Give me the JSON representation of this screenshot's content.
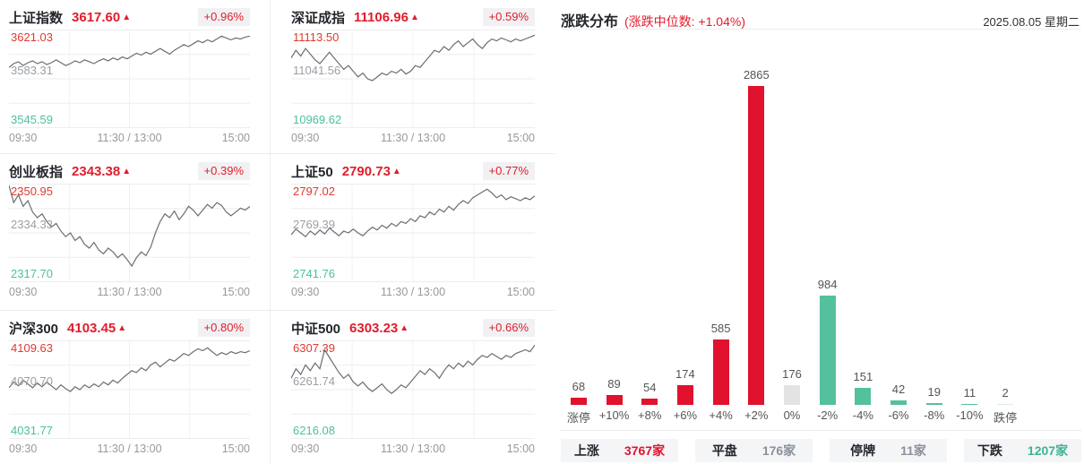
{
  "colors": {
    "up_red": "#e0122d",
    "up_red_text": "#e01d2c",
    "flat_gray_bar": "#e3e3e4",
    "down_teal_bar": "#55c09d",
    "down_teal_light_bar": "#d8efe7",
    "down_teal_text": "#3fb393",
    "neutral_gray_text": "#8b909a",
    "axis_gray": "#999999",
    "sparkline_gray": "#6b6e73"
  },
  "chart_data": [
    {
      "type": "bar",
      "title": "涨跌分布",
      "median_note": "(涨跌中位数: +1.04%)",
      "date": "2025.08.05 星期二",
      "categories": [
        "涨停",
        "+10%",
        "+8%",
        "+6%",
        "+4%",
        "+2%",
        "0%",
        "-2%",
        "-4%",
        "-6%",
        "-8%",
        "-10%",
        "跌停"
      ],
      "values": [
        68,
        89,
        54,
        174,
        585,
        2865,
        176,
        984,
        151,
        42,
        19,
        11,
        2
      ],
      "bar_colors": [
        "#e0122d",
        "#e0122d",
        "#e0122d",
        "#e0122d",
        "#e0122d",
        "#e0122d",
        "#e3e3e4",
        "#55c09d",
        "#55c09d",
        "#55c09d",
        "#55c09d",
        "#55c09d",
        "#d8efe7"
      ],
      "ylim": [
        0,
        2865
      ],
      "grid": false,
      "value_labels": true,
      "legend": "none"
    },
    {
      "type": "line",
      "name": "上证指数",
      "close": "3617.60",
      "direction": "▲",
      "change_pct": "+0.96%",
      "label_high": "3621.03",
      "label_mid": "3583.31",
      "label_low": "3545.59",
      "ylim": [
        3545.59,
        3621.03
      ],
      "times": [
        "09:30",
        "11:30 / 13:00",
        "15:00"
      ],
      "points_norm": [
        0.62,
        0.66,
        0.68,
        0.64,
        0.67,
        0.69,
        0.66,
        0.68,
        0.65,
        0.67,
        0.7,
        0.67,
        0.64,
        0.66,
        0.69,
        0.67,
        0.7,
        0.68,
        0.66,
        0.69,
        0.71,
        0.69,
        0.72,
        0.7,
        0.73,
        0.71,
        0.74,
        0.77,
        0.75,
        0.78,
        0.76,
        0.79,
        0.82,
        0.79,
        0.76,
        0.8,
        0.83,
        0.86,
        0.84,
        0.87,
        0.9,
        0.88,
        0.91,
        0.89,
        0.92,
        0.95,
        0.93,
        0.91,
        0.93,
        0.92,
        0.94,
        0.95
      ]
    },
    {
      "type": "line",
      "name": "深证成指",
      "close": "11106.96",
      "direction": "▲",
      "change_pct": "+0.59%",
      "label_high": "11113.50",
      "label_mid": "11041.56",
      "label_low": "10969.62",
      "ylim": [
        10969.62,
        11113.5
      ],
      "times": [
        "09:30",
        "11:30 / 13:00",
        "15:00"
      ],
      "points_norm": [
        0.72,
        0.8,
        0.74,
        0.82,
        0.76,
        0.7,
        0.66,
        0.72,
        0.78,
        0.72,
        0.66,
        0.6,
        0.64,
        0.58,
        0.52,
        0.56,
        0.5,
        0.48,
        0.52,
        0.56,
        0.54,
        0.58,
        0.56,
        0.6,
        0.55,
        0.58,
        0.64,
        0.62,
        0.68,
        0.74,
        0.8,
        0.78,
        0.84,
        0.8,
        0.86,
        0.9,
        0.84,
        0.88,
        0.92,
        0.86,
        0.82,
        0.88,
        0.92,
        0.9,
        0.93,
        0.91,
        0.89,
        0.92,
        0.9,
        0.92,
        0.94,
        0.96
      ]
    },
    {
      "type": "line",
      "name": "创业板指",
      "close": "2343.38",
      "direction": "▲",
      "change_pct": "+0.39%",
      "label_high": "2350.95",
      "label_mid": "2334.33",
      "label_low": "2317.70",
      "ylim": [
        2317.7,
        2350.95
      ],
      "times": [
        "09:30",
        "11:30 / 13:00",
        "15:00"
      ],
      "points_norm": [
        1.0,
        0.82,
        0.9,
        0.78,
        0.84,
        0.72,
        0.66,
        0.7,
        0.62,
        0.56,
        0.6,
        0.52,
        0.46,
        0.5,
        0.42,
        0.46,
        0.38,
        0.34,
        0.4,
        0.32,
        0.28,
        0.34,
        0.3,
        0.24,
        0.28,
        0.22,
        0.15,
        0.24,
        0.3,
        0.26,
        0.35,
        0.5,
        0.62,
        0.7,
        0.66,
        0.73,
        0.64,
        0.7,
        0.78,
        0.74,
        0.68,
        0.74,
        0.8,
        0.76,
        0.82,
        0.79,
        0.72,
        0.68,
        0.72,
        0.76,
        0.74,
        0.78
      ]
    },
    {
      "type": "line",
      "name": "上证50",
      "close": "2790.73",
      "direction": "▲",
      "change_pct": "+0.77%",
      "label_high": "2797.02",
      "label_mid": "2769.39",
      "label_low": "2741.76",
      "ylim": [
        2741.76,
        2797.02
      ],
      "times": [
        "09:30",
        "11:30 / 13:00",
        "15:00"
      ],
      "points_norm": [
        0.48,
        0.54,
        0.5,
        0.46,
        0.52,
        0.48,
        0.53,
        0.49,
        0.55,
        0.51,
        0.47,
        0.52,
        0.5,
        0.54,
        0.5,
        0.47,
        0.52,
        0.56,
        0.53,
        0.58,
        0.55,
        0.6,
        0.57,
        0.62,
        0.6,
        0.65,
        0.62,
        0.68,
        0.66,
        0.72,
        0.69,
        0.75,
        0.72,
        0.78,
        0.74,
        0.8,
        0.84,
        0.81,
        0.87,
        0.9,
        0.93,
        0.96,
        0.92,
        0.87,
        0.9,
        0.85,
        0.88,
        0.86,
        0.84,
        0.87,
        0.85,
        0.89
      ]
    },
    {
      "type": "line",
      "name": "沪深300",
      "close": "4103.45",
      "direction": "▲",
      "change_pct": "+0.80%",
      "label_high": "4109.63",
      "label_mid": "4070.70",
      "label_low": "4031.77",
      "ylim": [
        4031.77,
        4109.63
      ],
      "times": [
        "09:30",
        "11:30 / 13:00",
        "15:00"
      ],
      "points_norm": [
        0.52,
        0.58,
        0.54,
        0.6,
        0.56,
        0.52,
        0.57,
        0.53,
        0.58,
        0.54,
        0.5,
        0.55,
        0.51,
        0.48,
        0.53,
        0.5,
        0.55,
        0.52,
        0.56,
        0.53,
        0.58,
        0.55,
        0.6,
        0.57,
        0.62,
        0.66,
        0.7,
        0.68,
        0.73,
        0.7,
        0.76,
        0.79,
        0.74,
        0.78,
        0.82,
        0.8,
        0.84,
        0.88,
        0.86,
        0.9,
        0.93,
        0.91,
        0.94,
        0.9,
        0.86,
        0.89,
        0.87,
        0.9,
        0.88,
        0.9,
        0.89,
        0.91
      ]
    },
    {
      "type": "line",
      "name": "中证500",
      "close": "6303.23",
      "direction": "▲",
      "change_pct": "+0.66%",
      "label_high": "6307.39",
      "label_mid": "6261.74",
      "label_low": "6216.08",
      "ylim": [
        6216.08,
        6307.39
      ],
      "times": [
        "09:30",
        "11:30 / 13:00",
        "15:00"
      ],
      "points_norm": [
        0.62,
        0.72,
        0.66,
        0.76,
        0.7,
        0.78,
        0.72,
        0.92,
        0.84,
        0.76,
        0.68,
        0.62,
        0.66,
        0.58,
        0.54,
        0.58,
        0.52,
        0.48,
        0.52,
        0.56,
        0.5,
        0.46,
        0.5,
        0.55,
        0.52,
        0.58,
        0.64,
        0.7,
        0.66,
        0.72,
        0.68,
        0.62,
        0.7,
        0.76,
        0.72,
        0.78,
        0.74,
        0.8,
        0.76,
        0.82,
        0.86,
        0.84,
        0.88,
        0.85,
        0.82,
        0.86,
        0.84,
        0.88,
        0.9,
        0.92,
        0.9,
        0.97
      ]
    }
  ],
  "summary": [
    {
      "label": "上涨",
      "value": "3767家",
      "color": "#e0122d"
    },
    {
      "label": "平盘",
      "value": "176家",
      "color": "#8b909a"
    },
    {
      "label": "停牌",
      "value": "11家",
      "color": "#8b909a"
    },
    {
      "label": "下跌",
      "value": "1207家",
      "color": "#3fb393"
    }
  ]
}
